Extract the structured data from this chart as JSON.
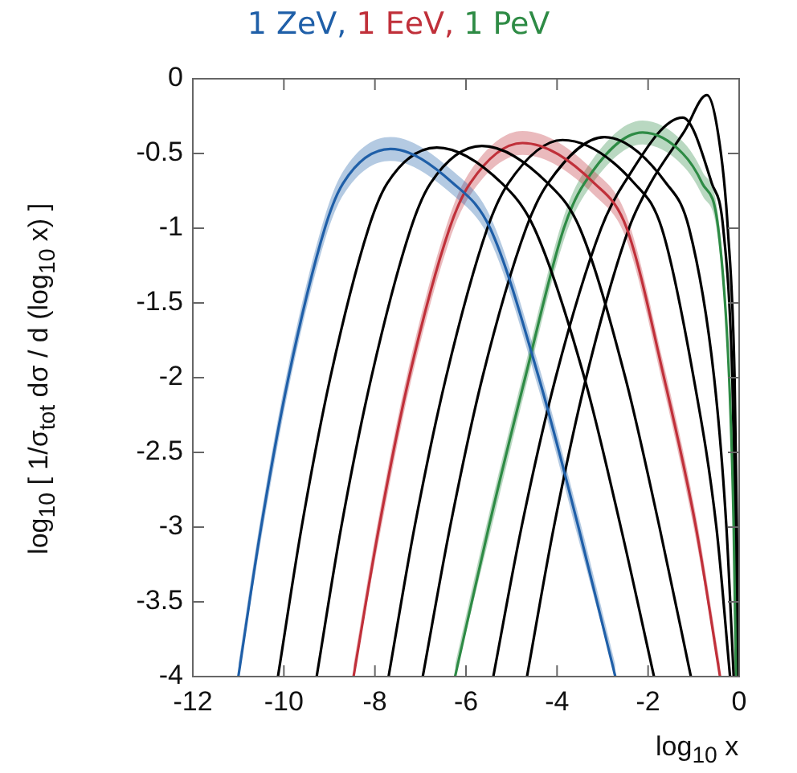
{
  "chart_data": {
    "type": "line",
    "xlabel": "log$_{10}$ x",
    "ylabel": "log$_{10}$ [ 1/σ$_{tot}$ dσ / d (log$_{10}$ x) ]",
    "xlim": [
      -12,
      0
    ],
    "xticks": [
      -12,
      -10,
      -8,
      -6,
      -4,
      -2,
      0
    ],
    "ylim": [
      -4,
      0
    ],
    "yticks": [
      0,
      -0.5,
      -1,
      -1.5,
      -2,
      -2.5,
      -3,
      -3.5,
      -4
    ],
    "grid": false,
    "legend": "top",
    "marker": "none",
    "line_style": "solid",
    "series": [
      {
        "name": "1 ZeV,",
        "color": "#1f5fa8",
        "x": [
          -11.0,
          -10.5,
          -9.9,
          -9.1,
          -8.7,
          -7.66,
          -6.28,
          -5.47,
          -4.4,
          -3.53,
          -2.72
        ],
        "values": [
          -4,
          -3,
          -2,
          -1,
          -0.7,
          -0.47,
          -0.7,
          -1,
          -2,
          -3,
          -4
        ],
        "lower": [
          -4,
          -3.08,
          -2.08,
          -1.08,
          -0.78,
          -0.55,
          -0.78,
          -1.08,
          -2.08,
          -3.08,
          -4
        ],
        "upper": [
          -3.92,
          -2.92,
          -1.92,
          -0.92,
          -0.62,
          -0.39,
          -0.62,
          -0.92,
          -1.92,
          -2.92,
          -3.92
        ]
      },
      {
        "color": "#000000",
        "x": [
          -10.13,
          -9.61,
          -8.98,
          -8.14,
          -7.73,
          -6.64,
          -5.21,
          -4.5,
          -3.4,
          -2.6,
          -1.87
        ],
        "values": [
          -4,
          -3,
          -2,
          -1,
          -0.7,
          -0.46,
          -0.7,
          -1,
          -2,
          -3,
          -4
        ]
      },
      {
        "color": "#000000",
        "x": [
          -9.28,
          -8.74,
          -8.08,
          -7.21,
          -6.78,
          -5.65,
          -4.2,
          -3.5,
          -2.5,
          -1.75,
          -1.06
        ],
        "values": [
          -4,
          -3,
          -2,
          -1,
          -0.7,
          -0.45,
          -0.7,
          -1,
          -2,
          -3,
          -4
        ]
      },
      {
        "name": "1 EeV,",
        "color": "#c0303a",
        "x": [
          -8.47,
          -7.91,
          -7.25,
          -6.36,
          -5.91,
          -4.76,
          -3.18,
          -2.47,
          -1.65,
          -0.95,
          -0.42
        ],
        "values": [
          -4,
          -3,
          -2,
          -1,
          -0.7,
          -0.43,
          -0.7,
          -1,
          -2,
          -3,
          -4
        ],
        "lower": [
          -4,
          -3.08,
          -2.08,
          -1.08,
          -0.78,
          -0.51,
          -0.78,
          -1.08,
          -2.08,
          -3.08,
          -4
        ],
        "upper": [
          -3.92,
          -2.92,
          -1.92,
          -0.92,
          -0.62,
          -0.35,
          -0.62,
          -0.92,
          -1.92,
          -2.92,
          -3.92
        ]
      },
      {
        "color": "#000000",
        "x": [
          -7.7,
          -7.13,
          -6.44,
          -5.53,
          -5.07,
          -3.88,
          -2.3,
          -1.7,
          -1.0,
          -0.5,
          -0.2
        ],
        "values": [
          -4,
          -3,
          -2,
          -1,
          -0.7,
          -0.41,
          -0.7,
          -1,
          -2,
          -3,
          -4
        ]
      },
      {
        "color": "#000000",
        "x": [
          -6.95,
          -6.35,
          -5.64,
          -4.68,
          -4.2,
          -2.96,
          -1.6,
          -1.1,
          -0.55,
          -0.28,
          -0.12
        ],
        "values": [
          -4,
          -3,
          -2,
          -1,
          -0.7,
          -0.39,
          -0.7,
          -1,
          -2,
          -3,
          -4
        ]
      },
      {
        "name": "1 PeV",
        "color": "#2e8b45",
        "x": [
          -6.24,
          -5.5,
          -4.7,
          -3.85,
          -3.4,
          -2.12,
          -1.24,
          -0.81,
          -0.46,
          -0.22,
          -0.12,
          -0.07
        ],
        "values": [
          -4,
          -3,
          -2,
          -1,
          -0.7,
          -0.36,
          -0.5,
          -0.7,
          -1,
          -2,
          -3,
          -4
        ],
        "lower": [
          -4,
          -3.08,
          -2.08,
          -1.08,
          -0.78,
          -0.44,
          -0.58,
          -0.78,
          -1.08,
          -2.08,
          -3.08,
          -4
        ],
        "upper": [
          -3.92,
          -2.92,
          -1.92,
          -0.92,
          -0.62,
          -0.28,
          -0.42,
          -0.62,
          -0.92,
          -1.92,
          -2.92,
          -3.92
        ]
      },
      {
        "color": "#000000",
        "x": [
          -5.4,
          -4.78,
          -4.03,
          -3.03,
          -2.53,
          -1.24,
          -0.6,
          -0.35,
          -0.15,
          -0.08,
          -0.04
        ],
        "values": [
          -4,
          -3,
          -2,
          -1,
          -0.7,
          -0.26,
          -0.7,
          -1,
          -2,
          -3,
          -4
        ]
      },
      {
        "color": "#000000",
        "x": [
          -4.66,
          -4.07,
          -3.36,
          -2.42,
          -1.95,
          -1.2,
          -0.71,
          -0.4,
          -0.25,
          -0.1,
          -0.05,
          -0.02
        ],
        "values": [
          -4,
          -3,
          -2,
          -1,
          -0.7,
          -0.35,
          -0.11,
          -0.5,
          -1,
          -2,
          -3,
          -4
        ]
      }
    ]
  }
}
